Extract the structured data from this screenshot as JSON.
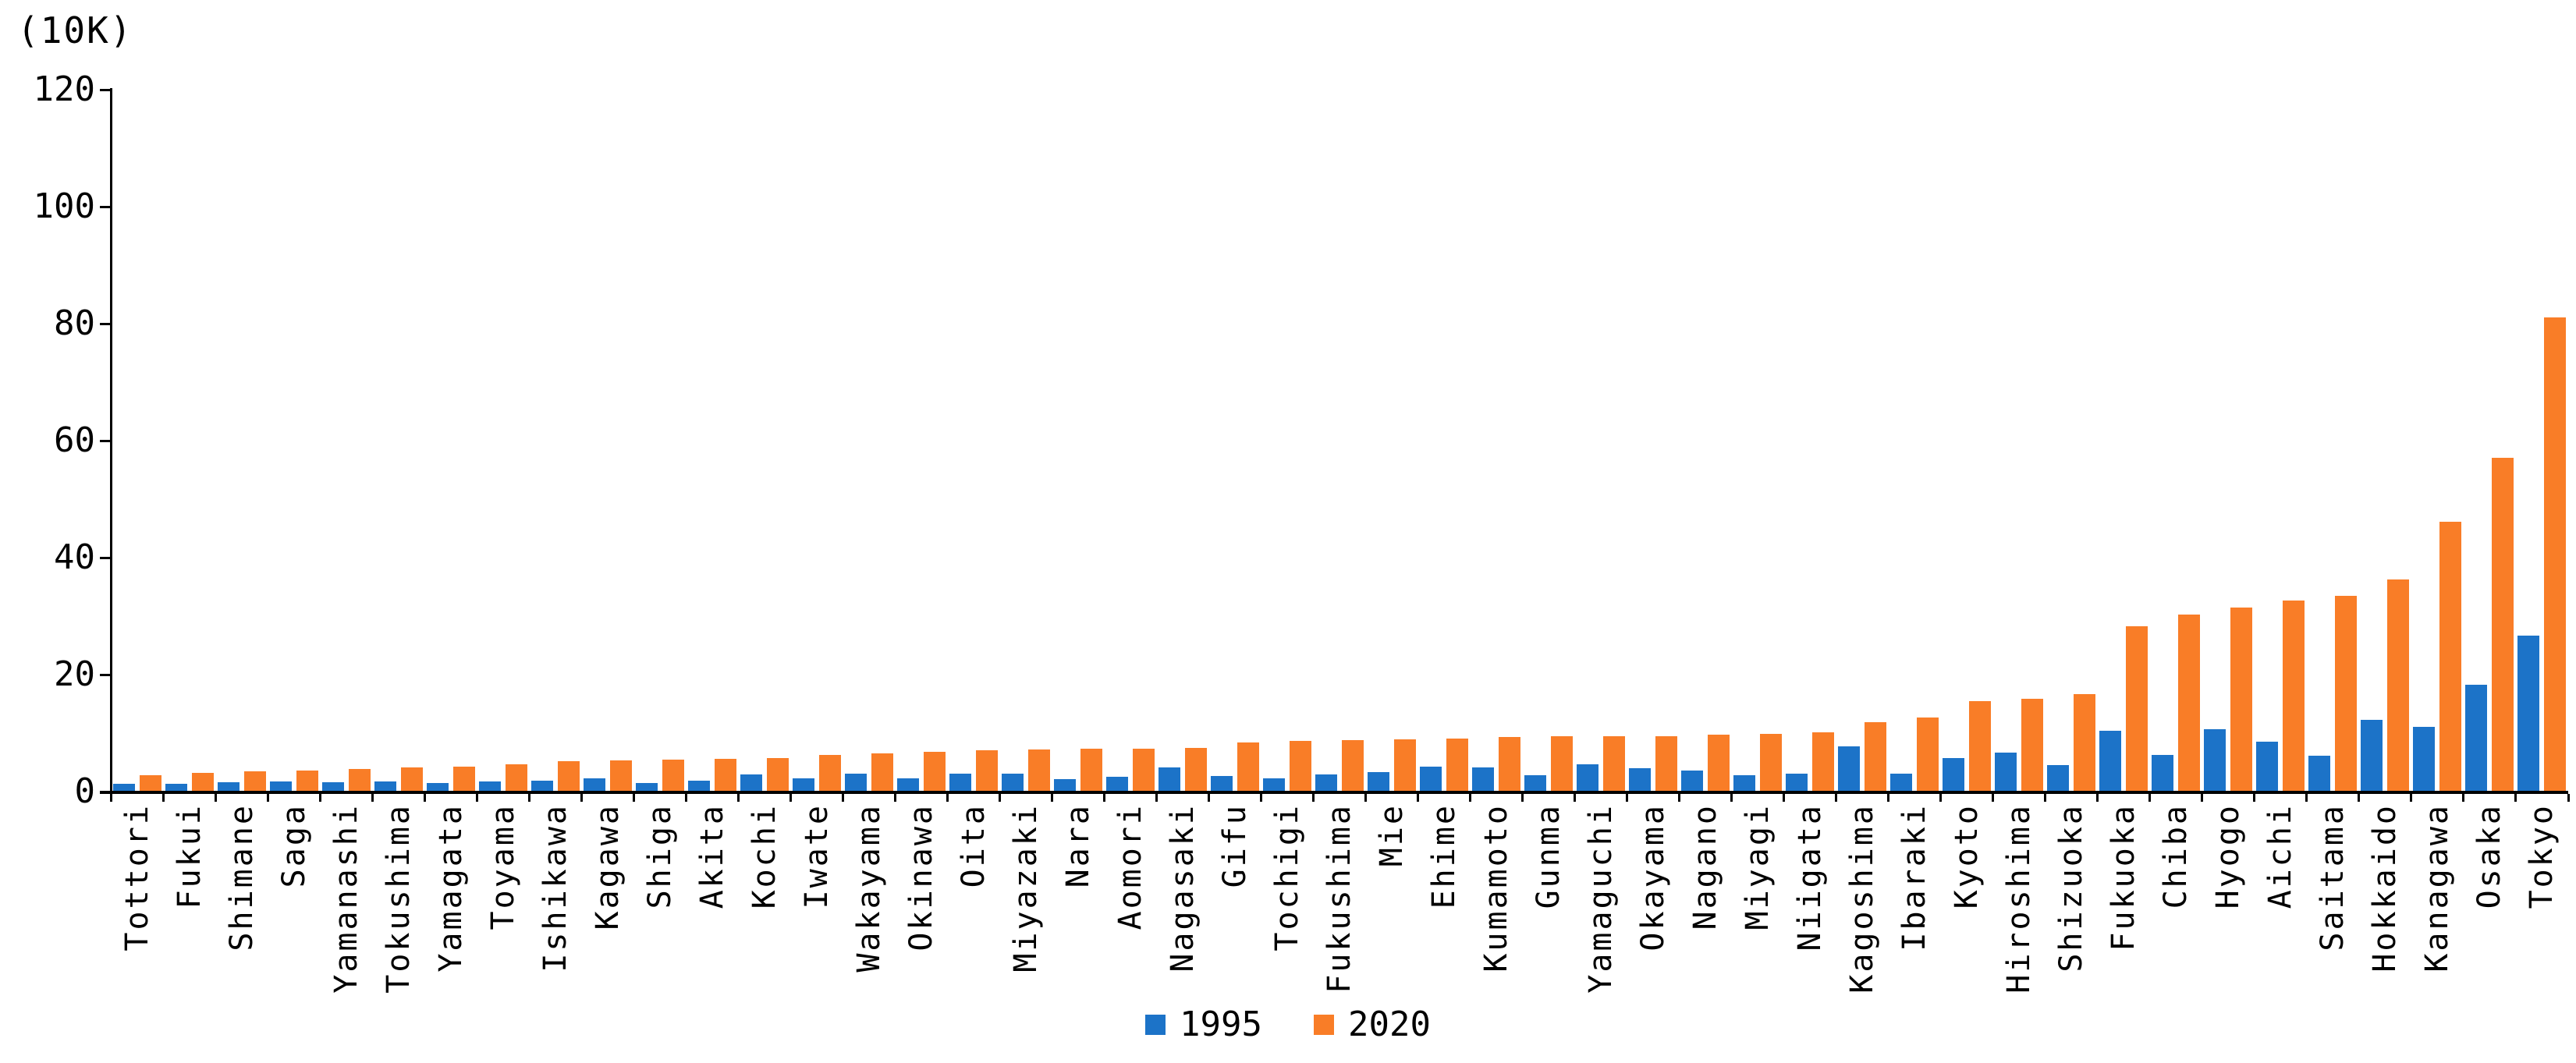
{
  "chart_data": {
    "type": "bar",
    "unit_label": "(10K)",
    "title": "",
    "xlabel": "",
    "ylabel": "(10K)",
    "ylim": [
      0,
      120
    ],
    "y_tick_step": 20,
    "y_tick_labels": [
      "0",
      "20",
      "40",
      "60",
      "80",
      "100",
      "120"
    ],
    "grid": false,
    "legend_position": "bottom-center",
    "sort_order": "ascending-by-2020",
    "background_color": "#FFFFFF",
    "axis_color": "#000000",
    "categories": [
      "Tottori",
      "Fukui",
      "Shimane",
      "Saga",
      "Yamanashi",
      "Tokushima",
      "Yamagata",
      "Toyama",
      "Ishikawa",
      "Kagawa",
      "Shiga",
      "Akita",
      "Kochi",
      "Iwate",
      "Wakayama",
      "Okinawa",
      "Oita",
      "Miyazaki",
      "Nara",
      "Aomori",
      "Nagasaki",
      "Gifu",
      "Tochigi",
      "Fukushima",
      "Mie",
      "Ehime",
      "Kumamoto",
      "Gunma",
      "Yamaguchi",
      "Okayama",
      "Nagano",
      "Miyagi",
      "Niigata",
      "Kagoshima",
      "Ibaraki",
      "Kyoto",
      "Hiroshima",
      "Shizuoka",
      "Fukuoka",
      "Chiba",
      "Hyogo",
      "Aichi",
      "Saitama",
      "Hokkaido",
      "Kanagawa",
      "Osaka",
      "Tokyo"
    ],
    "series": [
      {
        "name": "1995",
        "color": "#1C73C8",
        "values": [
          1.2,
          1.2,
          1.5,
          1.6,
          1.5,
          1.6,
          1.4,
          1.6,
          1.8,
          2.2,
          1.3,
          1.8,
          2.8,
          2.1,
          2.9,
          2.1,
          3.0,
          3.0,
          2.0,
          2.4,
          4.0,
          2.5,
          2.2,
          2.8,
          3.2,
          4.1,
          4.0,
          2.7,
          4.5,
          3.9,
          3.5,
          2.7,
          3.0,
          7.6,
          2.9,
          5.6,
          6.5,
          4.4,
          10.3,
          6.2,
          10.6,
          8.4,
          6.0,
          12.1,
          10.9,
          18.2,
          26.5
        ]
      },
      {
        "name": "2020",
        "color": "#F97D27",
        "values": [
          2.7,
          3.1,
          3.3,
          3.5,
          3.7,
          4.0,
          4.1,
          4.6,
          5.1,
          5.2,
          5.3,
          5.5,
          5.6,
          6.1,
          6.4,
          6.7,
          6.9,
          7.1,
          7.2,
          7.2,
          7.3,
          8.3,
          8.5,
          8.7,
          8.8,
          8.9,
          9.2,
          9.3,
          9.3,
          9.4,
          9.6,
          9.7,
          10.0,
          11.8,
          12.6,
          15.3,
          15.8,
          16.6,
          28.2,
          30.1,
          31.4,
          32.5,
          33.3,
          36.1,
          46.0,
          56.9,
          81.0
        ]
      }
    ]
  }
}
